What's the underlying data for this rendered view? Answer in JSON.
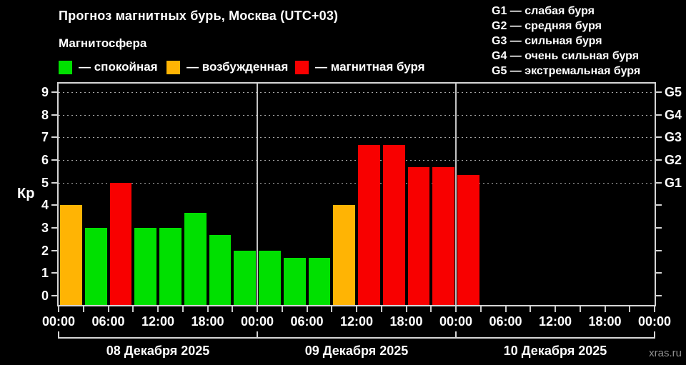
{
  "title": "Прогноз магнитных бурь, Москва (UTC+03)",
  "subtitle": "Магнитосфера",
  "watermark": "xras.ru",
  "colors": {
    "background": "#000000",
    "axis": "#d6d6d6",
    "grid": "#a8a8a8",
    "divider": "#c4c4c4",
    "quiet": "#00e000",
    "excited": "#ffb404",
    "storm": "#f80000",
    "text": "#ffffff",
    "watermark_text": "#8f8f8f"
  },
  "legend": [
    {
      "level": "quiet",
      "label": "— спокойная"
    },
    {
      "level": "excited",
      "label": "— возбужденная"
    },
    {
      "level": "storm",
      "label": "— магнитная буря"
    }
  ],
  "g_legend": [
    "G1 — слабая буря",
    "G2 — средняя буря",
    "G3 — сильная буря",
    "G4 — очень сильная буря",
    "G5 — экстремальная буря"
  ],
  "chart_data": {
    "type": "bar",
    "title": "Прогноз магнитных бурь, Москва (UTC+03)",
    "ylabel": "Кр",
    "ylim": [
      0,
      9
    ],
    "yticks": [
      0,
      1,
      2,
      3,
      4,
      5,
      6,
      7,
      8,
      9
    ],
    "gridlines_at_kp": [
      5,
      6,
      7,
      8,
      9
    ],
    "grid": "dashed horizontal at storm levels only",
    "legend_position": "top-left",
    "right_axis": [
      {
        "label": "G1",
        "kp": 5
      },
      {
        "label": "G2",
        "kp": 6
      },
      {
        "label": "G3",
        "kp": 7
      },
      {
        "label": "G4",
        "kp": 8
      },
      {
        "label": "G5",
        "kp": 9
      }
    ],
    "x_tick_labels": [
      "00:00",
      "06:00",
      "12:00",
      "18:00",
      "00:00",
      "06:00",
      "12:00",
      "18:00",
      "00:00",
      "06:00",
      "12:00",
      "18:00",
      "00:00"
    ],
    "bar_interval_hours": 3,
    "level_rules": {
      "quiet_max_below": 4,
      "excited_max_below": 5,
      "storm_min": 5
    },
    "days": [
      {
        "date": "08 Декабря 2025",
        "values": [
          4,
          3,
          5,
          3,
          3,
          3.67,
          2.67,
          2
        ]
      },
      {
        "date": "09 Декабря 2025",
        "values": [
          2,
          1.67,
          1.67,
          4,
          6.67,
          6.67,
          5.67,
          5.67
        ]
      },
      {
        "date": "10 Декабря 2025",
        "values": [
          5.33,
          null,
          null,
          null,
          null,
          null,
          null,
          null
        ]
      }
    ]
  }
}
